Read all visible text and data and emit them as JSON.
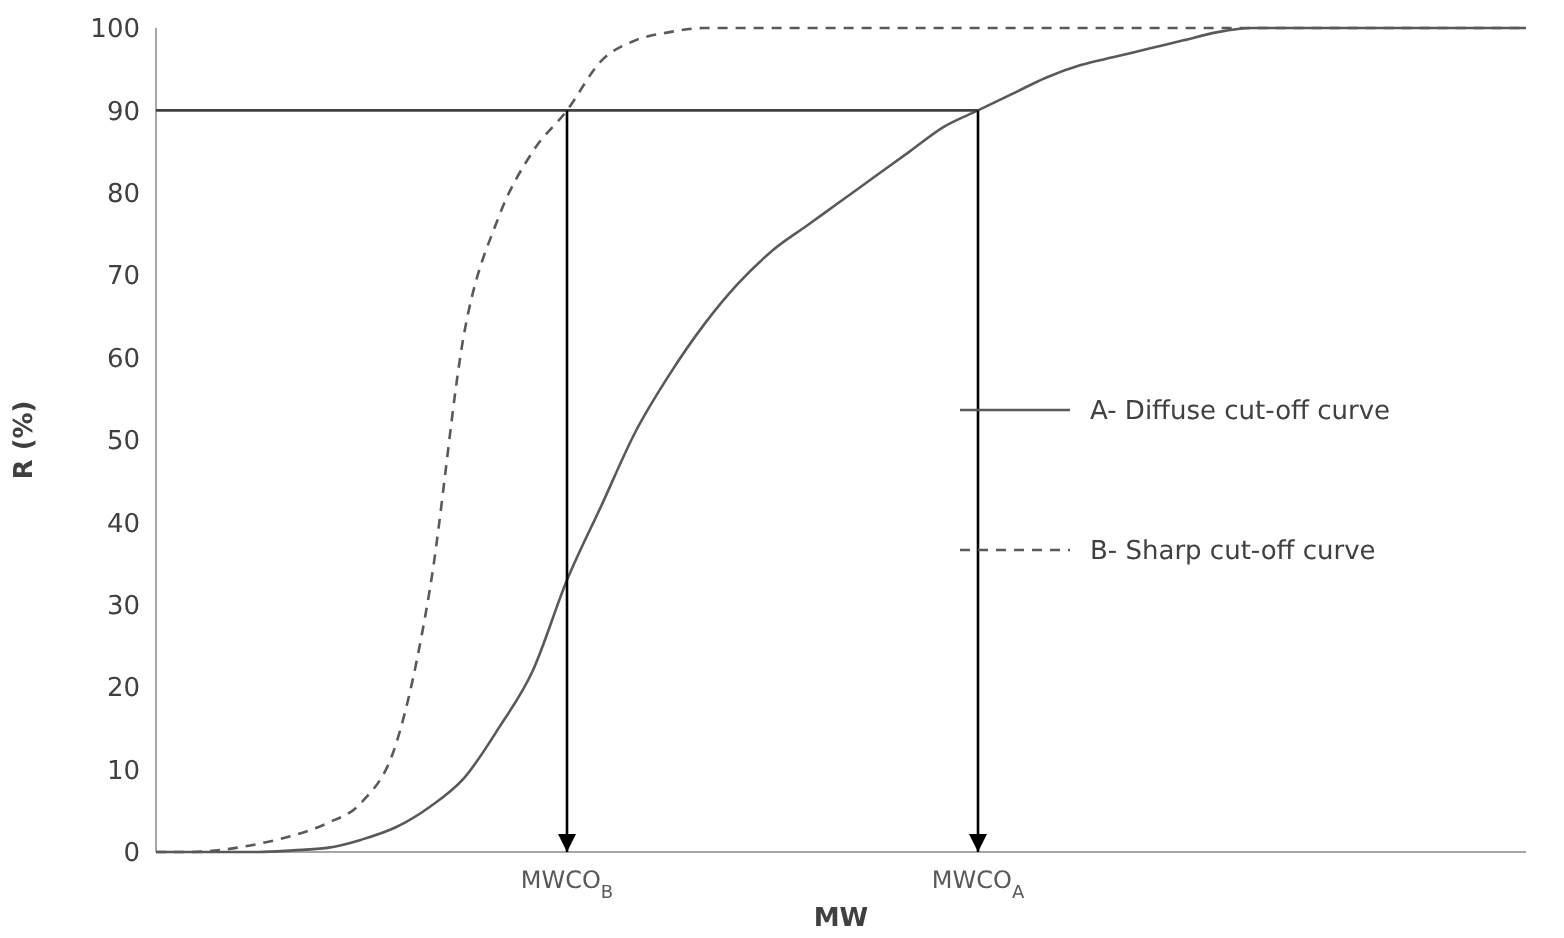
{
  "chart_data": {
    "type": "line",
    "xlabel": "MW",
    "ylabel": "R (%)",
    "categories": [
      null,
      null,
      null,
      null,
      null,
      null,
      null,
      null,
      null,
      null,
      null,
      null,
      "MWCO$_{B}$",
      null,
      null,
      null,
      null,
      null,
      null,
      null,
      null,
      null,
      null,
      null,
      "MWCO$_{A}$",
      null,
      null,
      null,
      null,
      null,
      null,
      null,
      null,
      null,
      null,
      null,
      null,
      null,
      null,
      null,
      null
    ],
    "ylim": [
      0,
      100
    ],
    "yticks": [
      0,
      10,
      20,
      30,
      40,
      50,
      60,
      70,
      80,
      90,
      100
    ],
    "legend": "right",
    "marker": "none",
    "ref_lines": [
      {
        "axis": "y",
        "value": 90,
        "color": "#404040"
      },
      {
        "axis": "x",
        "value": "MWCO$_{B}$",
        "color": "#000000"
      },
      {
        "axis": "x",
        "value": "MWCO$_{A}$",
        "color": "#000000"
      }
    ],
    "series": [
      {
        "name": "A- Diffuse cut-off curve",
        "color": "#595959",
        "line_style": "solid",
        "values": [
          0,
          0,
          0,
          0,
          0.2,
          0.5,
          1.5,
          3,
          5.5,
          9,
          15,
          22,
          33,
          42,
          51,
          58,
          64,
          69,
          73,
          76,
          79,
          82,
          85,
          88,
          90,
          92,
          94,
          95.5,
          96.5,
          97.5,
          98.5,
          99.5,
          100,
          100,
          100,
          100,
          100,
          100,
          100,
          100,
          100
        ]
      },
      {
        "name": "B- Sharp cut-off curve",
        "color": "#595959",
        "line_style": "dashed",
        "values": [
          0,
          0,
          0.3,
          1,
          2,
          3.5,
          6,
          13,
          32,
          63,
          77,
          85,
          90,
          96,
          98.5,
          99.5,
          100,
          100,
          100,
          100,
          100,
          100,
          100,
          100,
          100,
          100,
          100,
          100,
          100,
          100,
          100,
          100,
          100,
          100,
          100,
          100,
          100,
          100,
          100,
          100,
          100
        ]
      }
    ]
  }
}
